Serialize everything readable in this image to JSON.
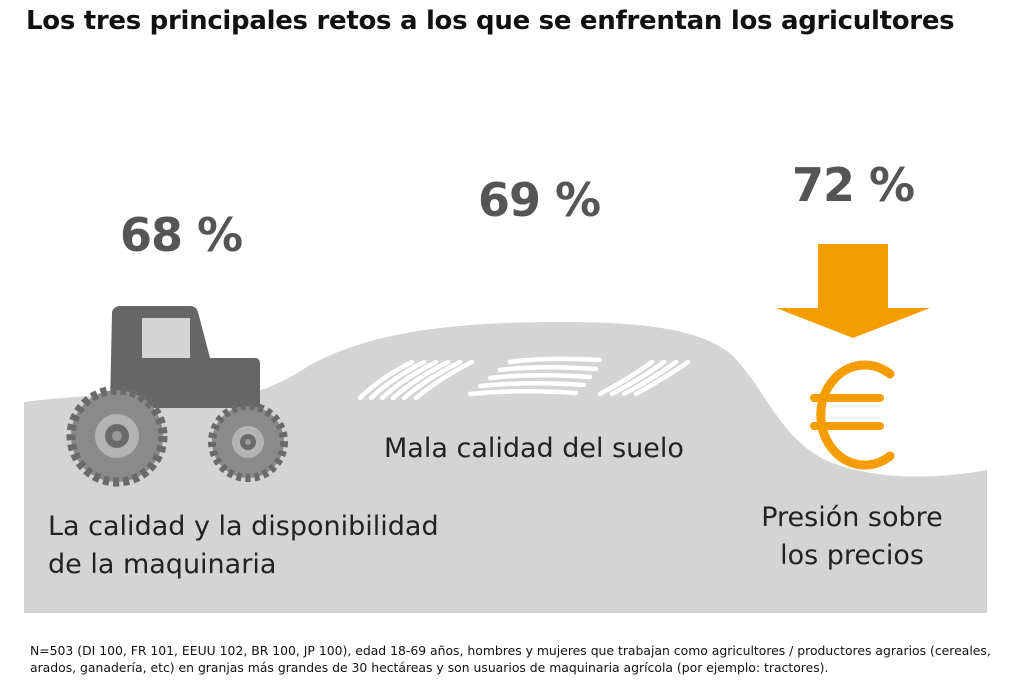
{
  "title": "Los tres principales retos a los que se enfrentan los agricultores",
  "items": [
    {
      "percent": "68 %",
      "label_line1": "La calidad y la disponibilidad",
      "label_line2": "de la maquinaria",
      "icon": "tractor-icon"
    },
    {
      "percent": "69 %",
      "label_line1": "Mala calidad del suelo",
      "icon": "plowed-field-icon"
    },
    {
      "percent": "72 %",
      "label_line1": "Presión sobre",
      "label_line2": "los precios",
      "icon": "euro-down-arrow-icon"
    }
  ],
  "colors": {
    "accent": "#f59c00",
    "hill": "#d4d4d4",
    "tractor": "#666666",
    "percent": "#555555"
  },
  "footnote": "N=503 (DI 100, FR 101, EEUU 102, BR 100, JP 100), edad 18-69 años, hombres y mujeres que trabajan como agricultores / productores agrarios (cereales, arados, ganadería, etc) en granjas más grandes de 30 hectáreas y son usuarios de maquinaria agrícola (por ejemplo: tractores)."
}
